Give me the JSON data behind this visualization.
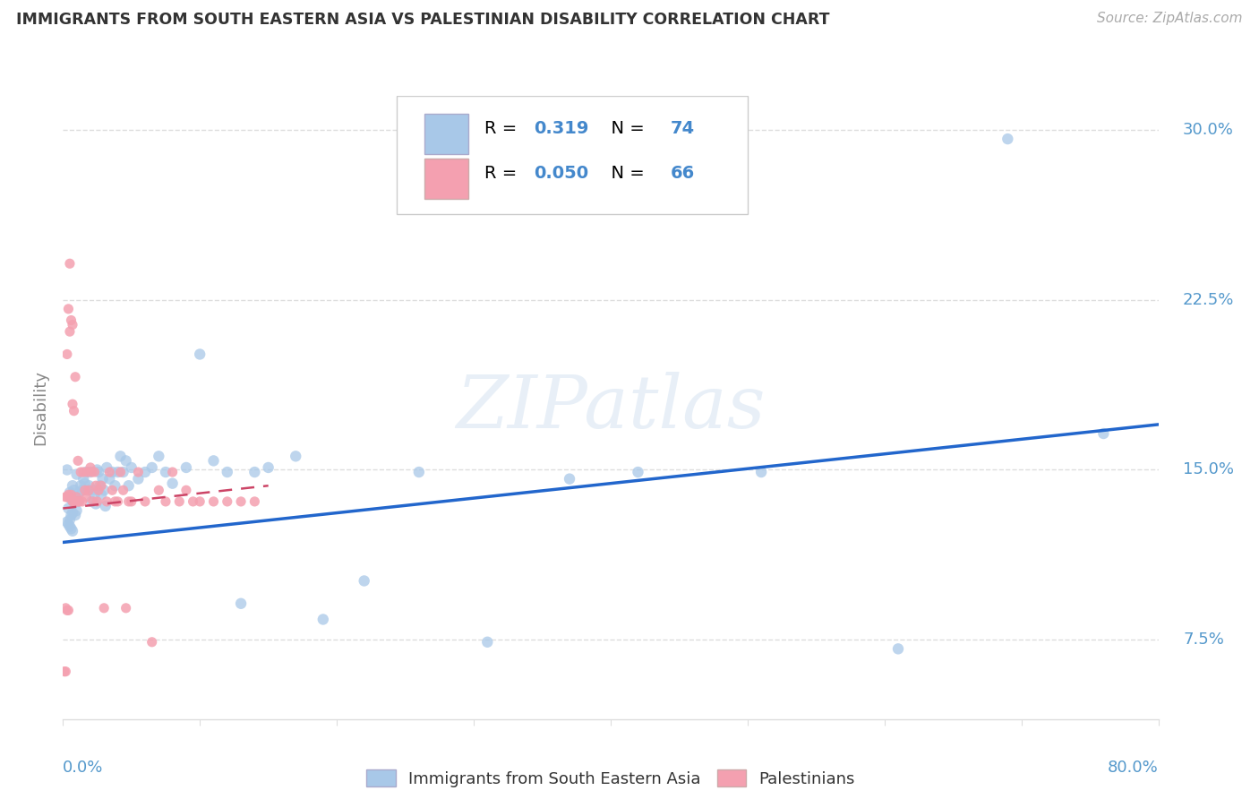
{
  "title": "IMMIGRANTS FROM SOUTH EASTERN ASIA VS PALESTINIAN DISABILITY CORRELATION CHART",
  "source": "Source: ZipAtlas.com",
  "ylabel": "Disability",
  "R1": "0.319",
  "N1": "74",
  "R2": "0.050",
  "N2": "66",
  "legend_label_1": "Immigrants from South Eastern Asia",
  "legend_label_2": "Palestinians",
  "watermark": "ZIPatlas",
  "blue_color": "#a8c8e8",
  "pink_color": "#f4a0b0",
  "line_blue": "#2266cc",
  "line_pink": "#cc4466",
  "text_blue": "#4488cc",
  "axis_label_color": "#5599cc",
  "title_color": "#333333",
  "source_color": "#aaaaaa",
  "ylabel_color": "#888888",
  "grid_color": "#dddddd",
  "background": "#ffffff",
  "x_min": 0.0,
  "x_max": 0.8,
  "y_min": 0.04,
  "y_max": 0.315,
  "yticks": [
    0.075,
    0.15,
    0.225,
    0.3
  ],
  "ytick_labels": [
    "7.5%",
    "15.0%",
    "22.5%",
    "30.0%"
  ],
  "xtick_labels": [
    "0.0%",
    "80.0%"
  ],
  "blue_line_x": [
    0.0,
    0.8
  ],
  "blue_line_y": [
    0.118,
    0.17
  ],
  "pink_line_x": [
    0.0,
    0.15
  ],
  "pink_line_y": [
    0.133,
    0.143
  ],
  "blue_scatter_x": [
    0.003,
    0.004,
    0.005,
    0.005,
    0.006,
    0.006,
    0.007,
    0.007,
    0.008,
    0.008,
    0.009,
    0.009,
    0.01,
    0.01,
    0.011,
    0.012,
    0.013,
    0.014,
    0.015,
    0.016,
    0.017,
    0.018,
    0.019,
    0.02,
    0.021,
    0.022,
    0.023,
    0.024,
    0.025,
    0.026,
    0.027,
    0.028,
    0.029,
    0.03,
    0.031,
    0.032,
    0.034,
    0.036,
    0.038,
    0.04,
    0.042,
    0.044,
    0.046,
    0.048,
    0.05,
    0.055,
    0.06,
    0.065,
    0.07,
    0.075,
    0.08,
    0.09,
    0.1,
    0.11,
    0.12,
    0.13,
    0.14,
    0.15,
    0.17,
    0.19,
    0.22,
    0.26,
    0.31,
    0.37,
    0.42,
    0.51,
    0.61,
    0.69,
    0.76,
    0.003,
    0.004,
    0.005,
    0.006,
    0.007
  ],
  "blue_scatter_y": [
    0.15,
    0.133,
    0.128,
    0.14,
    0.137,
    0.13,
    0.143,
    0.131,
    0.141,
    0.136,
    0.138,
    0.13,
    0.148,
    0.132,
    0.136,
    0.14,
    0.143,
    0.141,
    0.146,
    0.144,
    0.149,
    0.141,
    0.143,
    0.149,
    0.136,
    0.141,
    0.139,
    0.135,
    0.15,
    0.149,
    0.143,
    0.139,
    0.146,
    0.141,
    0.134,
    0.151,
    0.146,
    0.149,
    0.143,
    0.149,
    0.156,
    0.149,
    0.154,
    0.143,
    0.151,
    0.146,
    0.149,
    0.151,
    0.156,
    0.149,
    0.144,
    0.151,
    0.201,
    0.154,
    0.149,
    0.091,
    0.149,
    0.151,
    0.156,
    0.084,
    0.101,
    0.149,
    0.074,
    0.146,
    0.149,
    0.149,
    0.071,
    0.296,
    0.166,
    0.127,
    0.126,
    0.125,
    0.124,
    0.123
  ],
  "pink_scatter_x": [
    0.001,
    0.002,
    0.002,
    0.003,
    0.003,
    0.004,
    0.004,
    0.005,
    0.005,
    0.006,
    0.006,
    0.007,
    0.007,
    0.007,
    0.008,
    0.008,
    0.009,
    0.009,
    0.01,
    0.01,
    0.011,
    0.011,
    0.012,
    0.013,
    0.014,
    0.015,
    0.016,
    0.017,
    0.018,
    0.019,
    0.02,
    0.021,
    0.022,
    0.023,
    0.024,
    0.025,
    0.026,
    0.028,
    0.03,
    0.032,
    0.034,
    0.036,
    0.038,
    0.04,
    0.042,
    0.044,
    0.046,
    0.048,
    0.05,
    0.055,
    0.06,
    0.065,
    0.07,
    0.075,
    0.08,
    0.085,
    0.09,
    0.095,
    0.1,
    0.11,
    0.12,
    0.13,
    0.14,
    0.002,
    0.003,
    0.004
  ],
  "pink_scatter_y": [
    0.061,
    0.061,
    0.138,
    0.138,
    0.201,
    0.139,
    0.221,
    0.241,
    0.211,
    0.139,
    0.216,
    0.214,
    0.179,
    0.136,
    0.136,
    0.176,
    0.136,
    0.191,
    0.138,
    0.136,
    0.136,
    0.154,
    0.136,
    0.149,
    0.136,
    0.149,
    0.141,
    0.138,
    0.149,
    0.141,
    0.151,
    0.149,
    0.136,
    0.149,
    0.143,
    0.136,
    0.141,
    0.143,
    0.089,
    0.136,
    0.149,
    0.141,
    0.136,
    0.136,
    0.149,
    0.141,
    0.089,
    0.136,
    0.136,
    0.149,
    0.136,
    0.074,
    0.141,
    0.136,
    0.149,
    0.136,
    0.141,
    0.136,
    0.136,
    0.136,
    0.136,
    0.136,
    0.136,
    0.089,
    0.088,
    0.088
  ]
}
